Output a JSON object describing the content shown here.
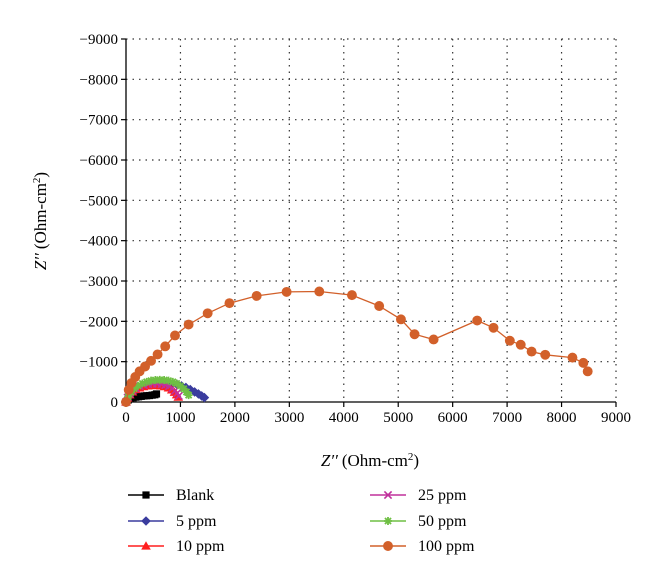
{
  "chart_data": {
    "type": "scatter",
    "title": "",
    "xlabel": {
      "main": "Z′′ (Ohm-cm",
      "sup": "2",
      "tail": ")"
    },
    "ylabel": {
      "main": "Z′′ (Ohm-cm",
      "sup": "2",
      "tail": ")"
    },
    "xlim": [
      0,
      9000
    ],
    "ylim": [
      0,
      -9000
    ],
    "xticks": [
      0,
      1000,
      2000,
      3000,
      4000,
      5000,
      6000,
      7000,
      8000,
      9000
    ],
    "yticks": [
      0,
      -1000,
      -2000,
      -3000,
      -4000,
      -5000,
      -6000,
      -7000,
      -8000,
      -9000
    ],
    "xtick_labels": [
      "0",
      "1000",
      "2000",
      "3000",
      "4000",
      "5000",
      "6000",
      "7000",
      "8000",
      "9000"
    ],
    "ytick_labels": [
      "0",
      "−1000",
      "−2000",
      "−3000",
      "−4000",
      "−5000",
      "−6000",
      "−7000",
      "−8000",
      "−9000"
    ],
    "grid": true,
    "legend_position": "bottom",
    "series": [
      {
        "name": "Blank",
        "color": "#000000",
        "marker": "square",
        "x": [
          0,
          40,
          80,
          130,
          180,
          230,
          280,
          330,
          380,
          430,
          480,
          530,
          560
        ],
        "y": [
          0,
          -50,
          -80,
          -105,
          -120,
          -130,
          -140,
          -150,
          -155,
          -160,
          -170,
          -180,
          -200
        ]
      },
      {
        "name": "5 ppm",
        "color": "#3a3c9e",
        "marker": "diamond",
        "x": [
          0,
          40,
          90,
          150,
          220,
          300,
          380,
          460,
          540,
          620,
          700,
          780,
          860,
          940,
          1020,
          1100,
          1180,
          1260,
          1330,
          1390,
          1440
        ],
        "y": [
          0,
          -110,
          -200,
          -280,
          -340,
          -390,
          -430,
          -460,
          -480,
          -490,
          -490,
          -480,
          -460,
          -430,
          -400,
          -360,
          -310,
          -250,
          -200,
          -150,
          -110
        ]
      },
      {
        "name": "10 ppm",
        "color": "#ff1f1f",
        "marker": "triangle",
        "x": [
          0,
          30,
          70,
          120,
          180,
          250,
          320,
          400,
          480,
          560,
          640,
          710,
          780,
          840,
          890,
          930,
          960
        ],
        "y": [
          0,
          -100,
          -180,
          -250,
          -310,
          -350,
          -380,
          -400,
          -410,
          -410,
          -400,
          -380,
          -350,
          -300,
          -240,
          -180,
          -120
        ]
      },
      {
        "name": "25 ppm",
        "color": "#c0309c",
        "marker": "x",
        "x": [
          0,
          30,
          70,
          120,
          180,
          250,
          330,
          410,
          490,
          570,
          650,
          720,
          790,
          850,
          900,
          940,
          970
        ],
        "y": [
          0,
          -110,
          -200,
          -280,
          -340,
          -390,
          -420,
          -440,
          -450,
          -450,
          -440,
          -420,
          -390,
          -340,
          -280,
          -220,
          -150
        ]
      },
      {
        "name": "50 ppm",
        "color": "#6fbf44",
        "marker": "star",
        "x": [
          0,
          40,
          90,
          150,
          220,
          300,
          380,
          460,
          540,
          620,
          700,
          780,
          860,
          930,
          1000,
          1060,
          1110,
          1150
        ],
        "y": [
          0,
          -130,
          -240,
          -330,
          -400,
          -460,
          -500,
          -530,
          -545,
          -550,
          -545,
          -530,
          -500,
          -460,
          -400,
          -330,
          -250,
          -170
        ]
      },
      {
        "name": "100 ppm",
        "color": "#d2602a",
        "marker": "circle",
        "x": [
          0,
          50,
          100,
          170,
          250,
          350,
          460,
          580,
          720,
          900,
          1150,
          1500,
          1900,
          2400,
          2950,
          3550,
          4150,
          4650,
          5050,
          5300,
          5650,
          6450,
          6750,
          7050,
          7250,
          7450,
          7700,
          8200,
          8400,
          8480
        ],
        "y": [
          0,
          -300,
          -470,
          -620,
          -760,
          -880,
          -1020,
          -1180,
          -1380,
          -1650,
          -1920,
          -2200,
          -2450,
          -2630,
          -2730,
          -2740,
          -2650,
          -2380,
          -2050,
          -1680,
          -1550,
          -2020,
          -1840,
          -1520,
          -1420,
          -1250,
          -1170,
          -1100,
          -970,
          -760
        ]
      }
    ]
  }
}
